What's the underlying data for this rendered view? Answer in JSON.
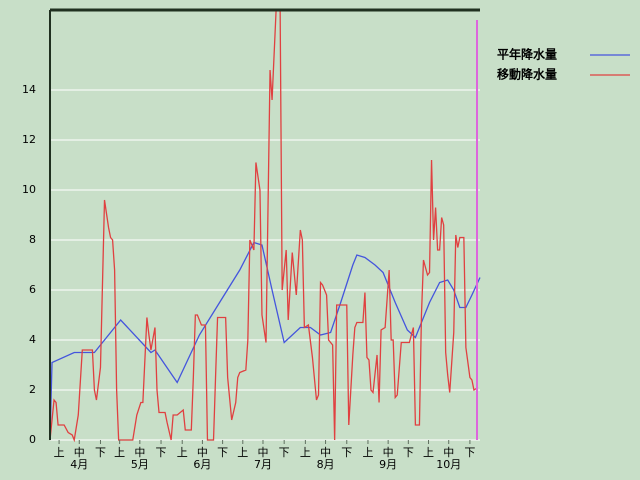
{
  "chart_data": {
    "type": "line",
    "series": [
      {
        "name": "平年降水量",
        "color": "#4455dd",
        "x": [
          0,
          1,
          12,
          22,
          35,
          50,
          52,
          63,
          74,
          84,
          94,
          101,
          105,
          110,
          116,
          124,
          129,
          134,
          139,
          144,
          150,
          152,
          156,
          161,
          165,
          171,
          177,
          181,
          183,
          188,
          193,
          197,
          200,
          203,
          206,
          209,
          213
        ],
        "values": [
          0,
          3.1,
          3.5,
          3.5,
          4.8,
          3.5,
          3.6,
          2.3,
          4.2,
          5.5,
          6.8,
          7.9,
          7.8,
          6.0,
          3.9,
          4.5,
          4.5,
          4.2,
          4.3,
          5.5,
          7.0,
          7.4,
          7.3,
          7.0,
          6.7,
          5.5,
          4.4,
          4.1,
          4.5,
          5.5,
          6.3,
          6.4,
          6.0,
          5.3,
          5.3,
          5.8,
          6.5
        ]
      },
      {
        "name": "移動降水量",
        "color": "#e04040",
        "x": [
          0,
          2,
          3,
          4,
          7,
          9,
          11,
          12,
          14,
          16,
          21,
          22,
          23,
          25,
          27,
          29,
          30,
          31,
          32,
          33,
          34,
          40,
          41,
          43,
          45,
          46,
          48,
          49,
          50,
          52,
          53,
          54,
          57,
          58,
          60,
          61,
          63,
          66,
          67,
          70,
          71,
          72,
          73,
          75,
          77,
          78,
          81,
          82,
          83,
          87,
          88,
          90,
          92,
          93,
          94,
          97,
          98,
          99,
          101,
          102,
          104,
          105,
          107,
          109,
          110,
          112,
          114,
          115,
          117,
          118,
          120,
          122,
          124,
          125,
          126,
          128,
          130,
          132,
          133,
          134,
          135,
          137,
          138,
          140,
          141,
          142,
          147,
          148,
          150,
          151,
          152,
          155,
          156,
          157,
          158,
          159,
          160,
          162,
          163,
          164,
          166,
          168,
          169,
          170,
          171,
          172,
          174,
          178,
          180,
          181,
          183,
          184,
          185,
          187,
          188,
          189,
          190,
          191,
          192,
          193,
          194,
          195,
          196,
          197,
          198,
          200,
          201,
          202,
          203,
          205,
          206,
          208,
          209,
          210,
          212
        ],
        "values": [
          0,
          1.6,
          1.5,
          0.6,
          0.6,
          0.3,
          0.2,
          0,
          1,
          3.6,
          3.6,
          2,
          1.6,
          2.9,
          9.6,
          8.5,
          8.1,
          8.0,
          6.8,
          2,
          0,
          0,
          0,
          1,
          1.5,
          1.5,
          4.9,
          4.2,
          3.6,
          4.5,
          2,
          1.1,
          1.1,
          0.7,
          0,
          1,
          1,
          1.2,
          0.4,
          0.4,
          2.5,
          5,
          5,
          4.6,
          4.6,
          0,
          0,
          2.5,
          4.9,
          4.9,
          2.5,
          0.8,
          1.5,
          2.5,
          2.7,
          2.8,
          4.0,
          8.0,
          7.6,
          11.1,
          10,
          5,
          3.9,
          14.8,
          13.6,
          17.2,
          17.2,
          6,
          7.6,
          4.8,
          7.5,
          5.8,
          8.4,
          8.0,
          4.5,
          4.6,
          3.3,
          1.6,
          1.8,
          6.3,
          6.2,
          5.8,
          4.0,
          3.8,
          0,
          5.4,
          5.4,
          0.6,
          3.4,
          4.5,
          4.7,
          4.7,
          5.9,
          3.3,
          3.2,
          2,
          1.9,
          3.4,
          1.5,
          4.4,
          4.5,
          6.8,
          4.0,
          4.0,
          1.7,
          1.8,
          3.9,
          3.9,
          4.5,
          0.6,
          0.6,
          5,
          7.2,
          6.6,
          6.7,
          11.2,
          8.0,
          9.3,
          7.6,
          7.6,
          8.9,
          8.6,
          3.5,
          2.6,
          1.9,
          4.3,
          8.2,
          7.7,
          8.1,
          8.1,
          3.7,
          2.5,
          2.4,
          2.0,
          2.1
        ]
      }
    ],
    "xlim": [
      0,
      213
    ],
    "xticks": [
      {
        "value": 4.5,
        "label": "上"
      },
      {
        "value": 14.5,
        "label": "中"
      },
      {
        "value": 25,
        "label": "下"
      },
      {
        "value": 34.5,
        "label": "上"
      },
      {
        "value": 44.5,
        "label": "中"
      },
      {
        "value": 55,
        "label": "下"
      },
      {
        "value": 65.5,
        "label": "上"
      },
      {
        "value": 75.5,
        "label": "中"
      },
      {
        "value": 85.5,
        "label": "下"
      },
      {
        "value": 95.5,
        "label": "上"
      },
      {
        "value": 105.5,
        "label": "中"
      },
      {
        "value": 116,
        "label": "下"
      },
      {
        "value": 126.5,
        "label": "上"
      },
      {
        "value": 136.5,
        "label": "中"
      },
      {
        "value": 147,
        "label": "下"
      },
      {
        "value": 157.5,
        "label": "上"
      },
      {
        "value": 167.5,
        "label": "中"
      },
      {
        "value": 177.5,
        "label": "下"
      },
      {
        "value": 187.5,
        "label": "上"
      },
      {
        "value": 197.5,
        "label": "中"
      },
      {
        "value": 208,
        "label": "下"
      }
    ],
    "month_labels": [
      {
        "value": 14.5,
        "label": "4月"
      },
      {
        "value": 44.5,
        "label": "5月"
      },
      {
        "value": 75.5,
        "label": "6月"
      },
      {
        "value": 105.5,
        "label": "7月"
      },
      {
        "value": 136.5,
        "label": "8月"
      },
      {
        "value": 167.5,
        "label": "9月"
      },
      {
        "value": 197.5,
        "label": "10月"
      }
    ],
    "ylim": [
      0,
      17.2
    ],
    "yticks": [
      0,
      2,
      4,
      6,
      8,
      10,
      12,
      14
    ],
    "grid": true
  }
}
